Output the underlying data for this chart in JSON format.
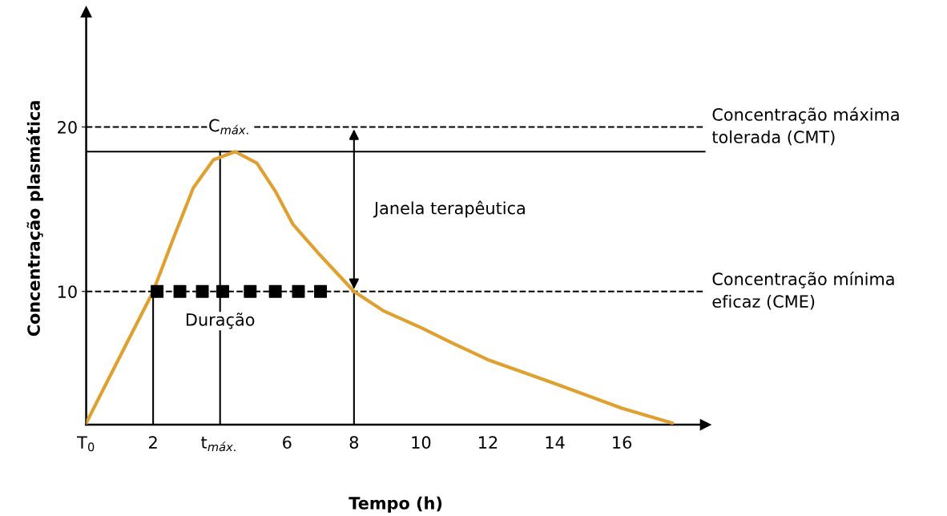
{
  "chart_data": {
    "type": "line",
    "xlabel": "Tempo (h)",
    "ylabel": "Concentração plasmática",
    "xlim": [
      0,
      18.5
    ],
    "ylim": [
      1.9,
      27
    ],
    "xticks": [
      {
        "value": 0,
        "label": "T$_{0}$"
      },
      2,
      {
        "value": 4,
        "label": "t$_{máx.}$"
      },
      6,
      8,
      10,
      12,
      14,
      16
    ],
    "yticks": [
      10,
      20
    ],
    "grid": false,
    "legend": false,
    "series": [
      {
        "color": "#e0a030",
        "x": [
          0,
          0.96,
          2,
          2.6,
          3.2,
          3.8,
          4.45,
          5.1,
          5.65,
          6.17,
          6.9,
          8,
          8.9,
          10,
          10.9,
          12,
          14,
          16,
          17.5
        ],
        "values": [
          2,
          5.85,
          10,
          13.2,
          16.3,
          18,
          18.5,
          17.8,
          16.1,
          14.1,
          12.4,
          10,
          8.8,
          7.8,
          6.9,
          5.85,
          4.4,
          2.9,
          2
        ]
      },
      {
        "type": "line",
        "color": "#000000",
        "x": [
          2,
          2
        ],
        "values": [
          2,
          10
        ]
      },
      {
        "type": "line",
        "color": "#000000",
        "x": [
          4,
          4
        ],
        "values": [
          2,
          18.5
        ]
      },
      {
        "type": "line",
        "color": "#000000",
        "x": [
          8,
          8
        ],
        "values": [
          2,
          10
        ]
      },
      {
        "type": "scatter",
        "marker": "square",
        "color": "#000000",
        "x": [
          2.12,
          2.8,
          3.47,
          4.08,
          4.9,
          5.65,
          6.34,
          7.0
        ],
        "values": [
          10,
          10,
          10,
          10,
          10,
          10,
          10,
          10
        ]
      }
    ],
    "ref_lines": [
      {
        "axis": "y",
        "value": 20,
        "label": "Concentração máxima\ntolerada (CMT)",
        "line_style": "dashed",
        "color": "#000000"
      },
      {
        "axis": "y",
        "value": 10,
        "label": "Concentração mínima\neficaz (CME)",
        "line_style": "dashed",
        "color": "#000000"
      },
      {
        "axis": "y",
        "value": 18.5,
        "line_style": "solid",
        "color": "#000000"
      }
    ],
    "annotations": [
      {
        "text": "C$_{máx.}$",
        "x": 4.3,
        "y": 20
      },
      {
        "text": "Duração",
        "x": 4,
        "y": 8.2
      },
      "Janela terapêutica"
    ]
  }
}
